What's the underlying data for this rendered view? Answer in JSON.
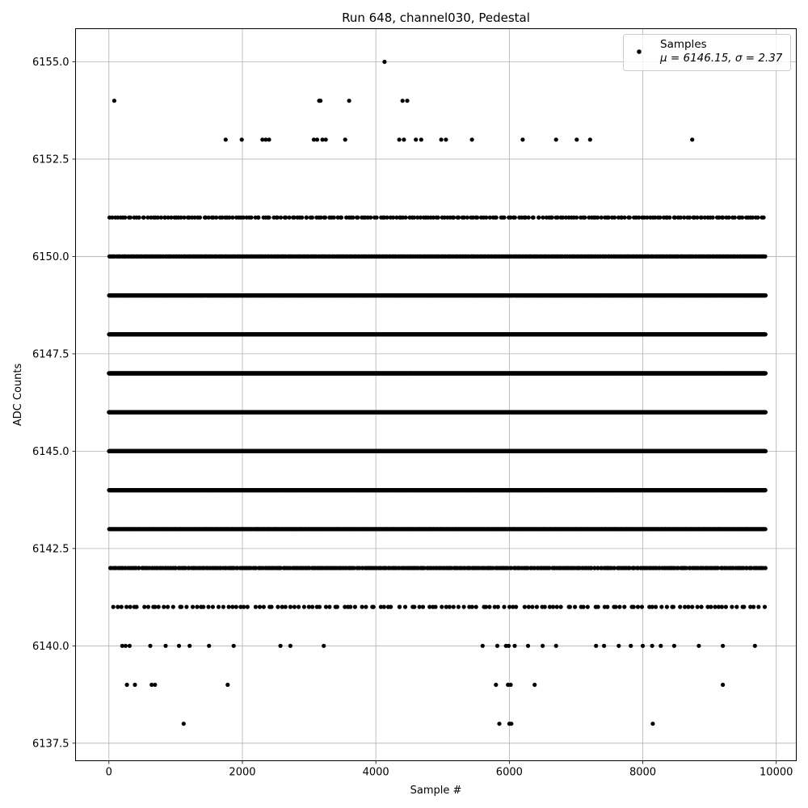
{
  "chart_data": {
    "type": "scatter",
    "title": "Run 648, channel030, Pedestal",
    "xlabel": "Sample #",
    "ylabel": "ADC Counts",
    "xlim": [
      -500,
      10300
    ],
    "ylim": [
      6137.05,
      6155.85
    ],
    "x_ticks": [
      0,
      2000,
      4000,
      6000,
      8000,
      10000
    ],
    "x_tick_labels": [
      "0",
      "2000",
      "4000",
      "6000",
      "8000",
      "10000"
    ],
    "y_ticks": [
      6137.5,
      6140.0,
      6142.5,
      6145.0,
      6147.5,
      6150.0,
      6152.5,
      6155.0
    ],
    "y_tick_labels": [
      "6137.5",
      "6140.0",
      "6142.5",
      "6145.0",
      "6147.5",
      "6150.0",
      "6152.5",
      "6155.0"
    ],
    "grid": true,
    "legend": {
      "placement": "upper-right",
      "entries": [
        {
          "label": "Samples",
          "stats": "μ = 6146.15, σ = 2.37"
        }
      ]
    },
    "marker_color": "#000000",
    "n_samples": 9840,
    "series": [
      {
        "name": "Samples",
        "mean": 6146.15,
        "std": 2.37,
        "level_fill": [
          [
            6138,
            0.0005
          ],
          [
            6139,
            0.0012
          ],
          [
            6140,
            0.004
          ],
          [
            6141,
            0.015
          ],
          [
            6142,
            0.04
          ],
          [
            6143,
            0.1
          ],
          [
            6144,
            0.22
          ],
          [
            6145,
            0.4
          ],
          [
            6146,
            0.5
          ],
          [
            6147,
            0.5
          ],
          [
            6148,
            0.28
          ],
          [
            6149,
            0.15
          ],
          [
            6150,
            0.06
          ],
          [
            6151,
            0.025
          ],
          [
            6152,
            0.009
          ],
          [
            6153,
            0.003
          ],
          [
            6154,
            0.0008
          ],
          [
            6155,
            0.0001
          ]
        ],
        "points": [
          [
            1120,
            6138
          ],
          [
            5850,
            6138
          ],
          [
            6000,
            6138
          ],
          [
            6030,
            6138
          ],
          [
            8150,
            6138
          ],
          [
            270,
            6139
          ],
          [
            390,
            6139
          ],
          [
            640,
            6139
          ],
          [
            690,
            6139
          ],
          [
            1780,
            6139
          ],
          [
            5800,
            6139
          ],
          [
            5980,
            6139
          ],
          [
            6020,
            6139
          ],
          [
            6380,
            6139
          ],
          [
            9200,
            6139
          ],
          [
            200,
            6140
          ],
          [
            250,
            6140
          ],
          [
            310,
            6140
          ],
          [
            620,
            6140
          ],
          [
            850,
            6140
          ],
          [
            1050,
            6140
          ],
          [
            1210,
            6140
          ],
          [
            1500,
            6140
          ],
          [
            1870,
            6140
          ],
          [
            2570,
            6140
          ],
          [
            2720,
            6140
          ],
          [
            3220,
            6140
          ],
          [
            5600,
            6140
          ],
          [
            5820,
            6140
          ],
          [
            5950,
            6140
          ],
          [
            5990,
            6140
          ],
          [
            6080,
            6140
          ],
          [
            6280,
            6140
          ],
          [
            6500,
            6140
          ],
          [
            6700,
            6140
          ],
          [
            7300,
            6140
          ],
          [
            7420,
            6140
          ],
          [
            7640,
            6140
          ],
          [
            7820,
            6140
          ],
          [
            8000,
            6140
          ],
          [
            8140,
            6140
          ],
          [
            8270,
            6140
          ],
          [
            8470,
            6140
          ],
          [
            8840,
            6140
          ],
          [
            9200,
            6140
          ],
          [
            9680,
            6140
          ],
          [
            4130,
            6155
          ],
          [
            80,
            6154
          ],
          [
            3150,
            6154
          ],
          [
            3170,
            6154
          ],
          [
            3600,
            6154
          ],
          [
            4400,
            6154
          ],
          [
            4470,
            6154
          ],
          [
            1750,
            6153
          ],
          [
            1990,
            6153
          ],
          [
            2300,
            6153
          ],
          [
            2350,
            6153
          ],
          [
            2400,
            6153
          ],
          [
            3070,
            6153
          ],
          [
            3120,
            6153
          ],
          [
            3200,
            6153
          ],
          [
            3250,
            6153
          ],
          [
            3540,
            6153
          ],
          [
            4350,
            6153
          ],
          [
            4420,
            6153
          ],
          [
            4600,
            6153
          ],
          [
            4680,
            6153
          ],
          [
            4980,
            6153
          ],
          [
            5050,
            6153
          ],
          [
            5440,
            6153
          ],
          [
            6200,
            6153
          ],
          [
            6700,
            6153
          ],
          [
            7010,
            6153
          ],
          [
            7210,
            6153
          ],
          [
            8740,
            6153
          ]
        ]
      }
    ]
  }
}
